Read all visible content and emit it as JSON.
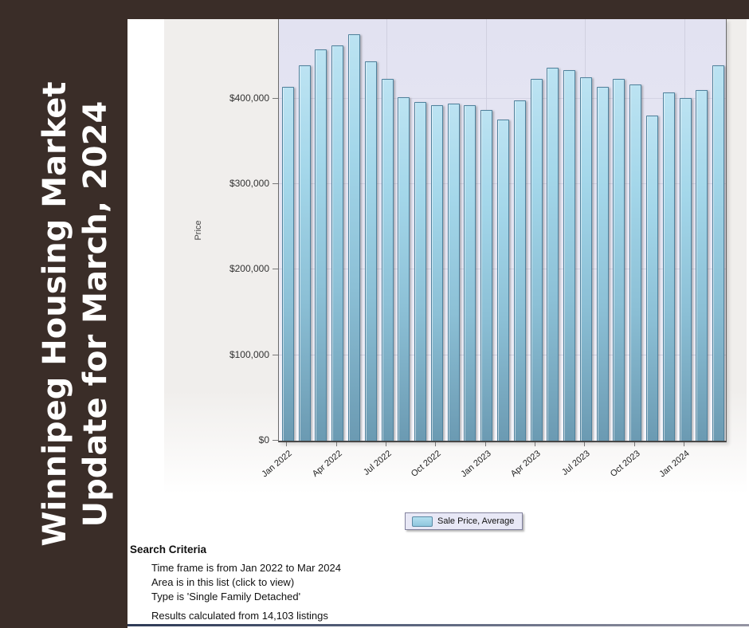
{
  "banner": {
    "line1": "Winnipeg Housing Market",
    "line2": "Update for March, 2024",
    "bg_color": "#3a2d28",
    "text_color": "#ffffff"
  },
  "chart": {
    "y_axis_title": "Price",
    "legend_label": "Sale Price, Average",
    "bar_color": "#9fd2e6",
    "plot_bg_color": "#e4e4f2",
    "chart_bg_color": "#f0eeec"
  },
  "chart_data": {
    "type": "bar",
    "title": "",
    "xlabel": "",
    "ylabel": "Price",
    "categories": [
      "Jan 2022",
      "Feb 2022",
      "Mar 2022",
      "Apr 2022",
      "May 2022",
      "Jun 2022",
      "Jul 2022",
      "Aug 2022",
      "Sep 2022",
      "Oct 2022",
      "Nov 2022",
      "Dec 2022",
      "Jan 2023",
      "Feb 2023",
      "Mar 2023",
      "Apr 2023",
      "May 2023",
      "Jun 2023",
      "Jul 2023",
      "Aug 2023",
      "Sep 2023",
      "Oct 2023",
      "Nov 2023",
      "Dec 2023",
      "Jan 2024",
      "Feb 2024",
      "Mar 2024"
    ],
    "values": [
      413000,
      438000,
      457000,
      461000,
      474000,
      443000,
      422000,
      401000,
      395000,
      391000,
      393000,
      391000,
      386000,
      375000,
      397000,
      422000,
      435000,
      432000,
      424000,
      413000,
      422000,
      416000,
      379000,
      406000,
      400000,
      409000,
      438000
    ],
    "series_name": "Sale Price, Average",
    "x_tick_labels": [
      "Jan 2022",
      "Apr 2022",
      "Jul 2022",
      "Oct 2022",
      "Jan 2023",
      "Apr 2023",
      "Jul 2023",
      "Oct 2023",
      "Jan 2024"
    ],
    "x_tick_indices": [
      0,
      3,
      6,
      9,
      12,
      15,
      18,
      21,
      24
    ],
    "y_tick_labels": [
      "$0",
      "$100,000",
      "$200,000",
      "$300,000",
      "$400,000"
    ],
    "ylim": [
      0,
      492000
    ],
    "grid": "horizontal",
    "vertical_gridline_indices": [
      6,
      12,
      18,
      24
    ],
    "legend": [
      "Sale Price, Average"
    ],
    "legend_position": "bottom"
  },
  "criteria": {
    "title": "Search Criteria",
    "items": [
      "Time frame is from Jan 2022 to Mar 2024",
      "Area is in this list (click to view)",
      "Type is 'Single Family Detached'"
    ],
    "results": "Results calculated from 14,103 listings"
  }
}
